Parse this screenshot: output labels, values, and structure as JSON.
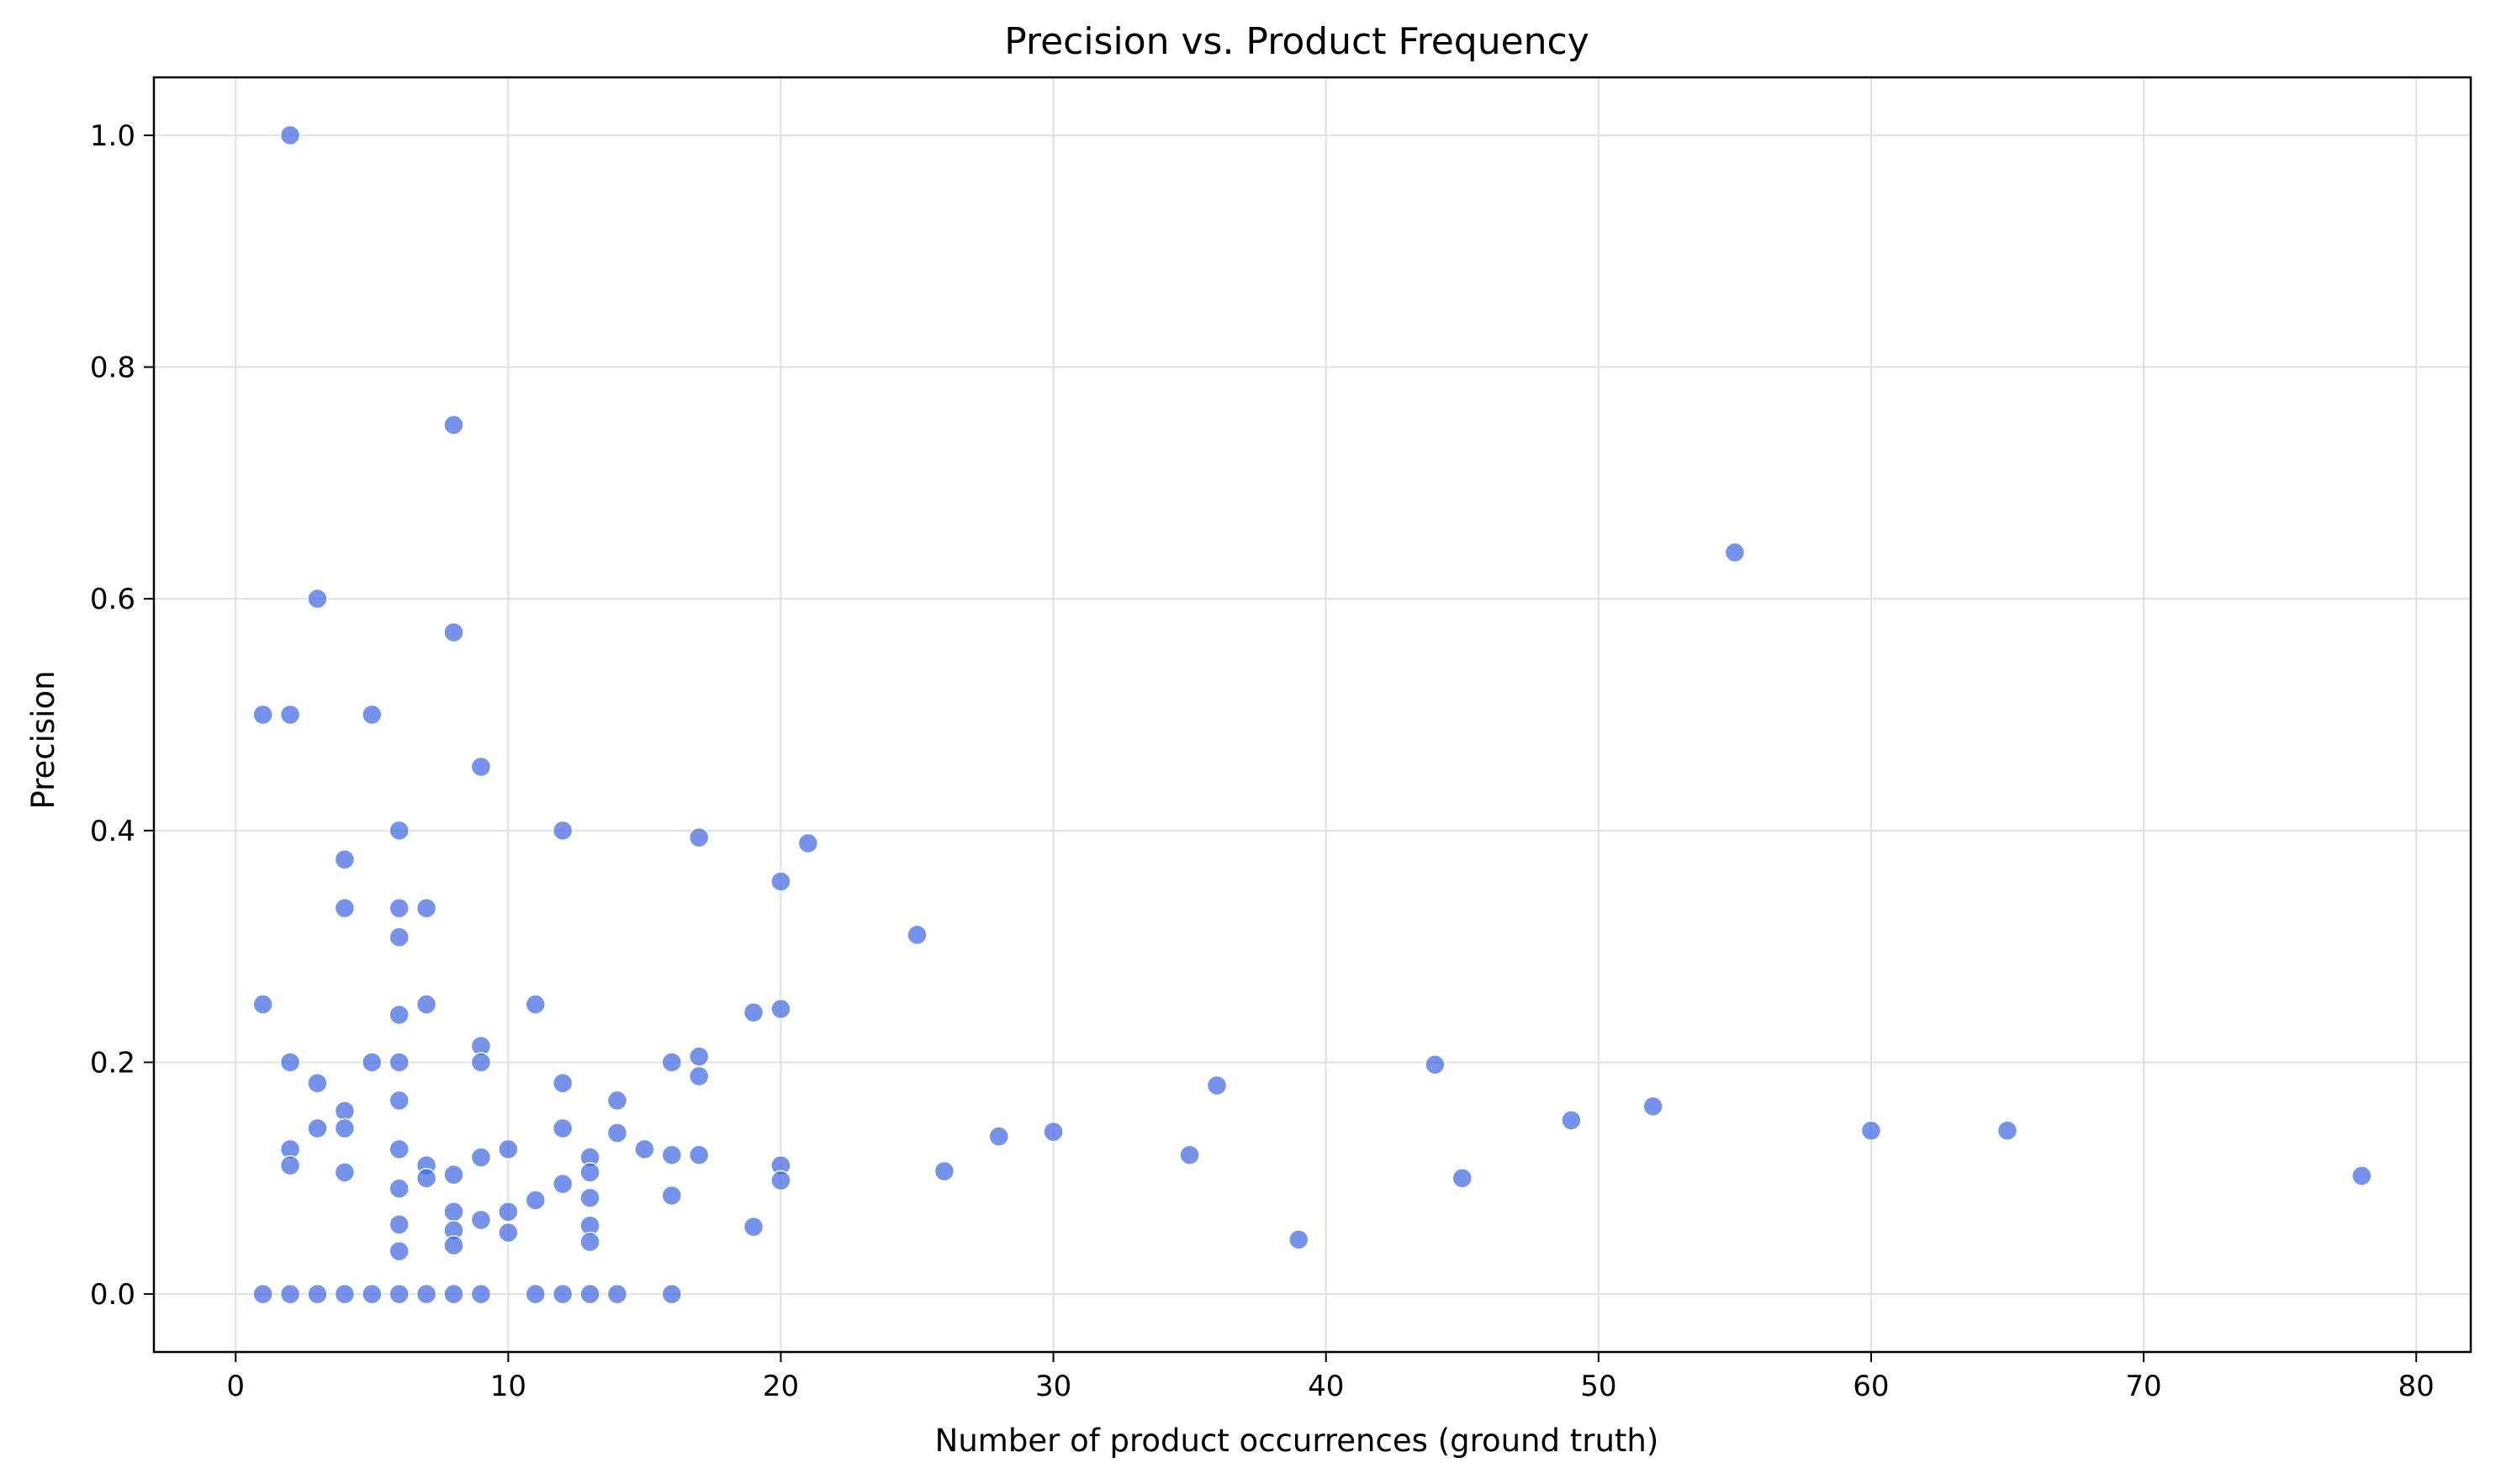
{
  "chart_data": {
    "type": "scatter",
    "title": "Precision vs. Product Frequency",
    "xlabel": "Number of product occurrences (ground truth)",
    "ylabel": "Precision",
    "xlim": [
      -3,
      82
    ],
    "ylim": [
      -0.05,
      1.05
    ],
    "xticks": [
      0,
      10,
      20,
      30,
      40,
      50,
      60,
      70,
      80
    ],
    "yticks": [
      0.0,
      0.2,
      0.4,
      0.6,
      0.8,
      1.0
    ],
    "xtick_labels": [
      "0",
      "10",
      "20",
      "30",
      "40",
      "50",
      "60",
      "70",
      "80"
    ],
    "ytick_labels": [
      "0.0",
      "0.2",
      "0.4",
      "0.6",
      "0.8",
      "1.0"
    ],
    "grid": true,
    "point_color": "#4169e1",
    "points": [
      [
        2,
        1.0
      ],
      [
        8,
        0.75
      ],
      [
        55,
        0.64
      ],
      [
        3,
        0.6
      ],
      [
        8,
        0.571
      ],
      [
        1,
        0.5
      ],
      [
        2,
        0.5
      ],
      [
        5,
        0.5
      ],
      [
        9,
        0.455
      ],
      [
        6,
        0.4
      ],
      [
        12,
        0.4
      ],
      [
        17,
        0.394
      ],
      [
        21,
        0.389
      ],
      [
        4,
        0.375
      ],
      [
        20,
        0.356
      ],
      [
        4,
        0.333
      ],
      [
        6,
        0.333
      ],
      [
        7,
        0.333
      ],
      [
        25,
        0.31
      ],
      [
        6,
        0.308
      ],
      [
        1,
        0.25
      ],
      [
        7,
        0.25
      ],
      [
        11,
        0.25
      ],
      [
        19,
        0.243
      ],
      [
        20,
        0.246
      ],
      [
        6,
        0.241
      ],
      [
        9,
        0.214
      ],
      [
        2,
        0.2
      ],
      [
        5,
        0.2
      ],
      [
        6,
        0.2
      ],
      [
        9,
        0.2
      ],
      [
        16,
        0.2
      ],
      [
        17,
        0.205
      ],
      [
        44,
        0.198
      ],
      [
        17,
        0.188
      ],
      [
        3,
        0.182
      ],
      [
        12,
        0.182
      ],
      [
        36,
        0.18
      ],
      [
        6,
        0.167
      ],
      [
        14,
        0.167
      ],
      [
        52,
        0.162
      ],
      [
        4,
        0.158
      ],
      [
        49,
        0.15
      ],
      [
        3,
        0.143
      ],
      [
        4,
        0.143
      ],
      [
        12,
        0.143
      ],
      [
        60,
        0.141
      ],
      [
        65,
        0.141
      ],
      [
        30,
        0.14
      ],
      [
        14,
        0.139
      ],
      [
        28,
        0.136
      ],
      [
        2,
        0.125
      ],
      [
        6,
        0.125
      ],
      [
        10,
        0.125
      ],
      [
        15,
        0.125
      ],
      [
        35,
        0.12
      ],
      [
        16,
        0.12
      ],
      [
        17,
        0.12
      ],
      [
        13,
        0.118
      ],
      [
        9,
        0.118
      ],
      [
        2,
        0.111
      ],
      [
        7,
        0.111
      ],
      [
        20,
        0.111
      ],
      [
        26,
        0.106
      ],
      [
        4,
        0.105
      ],
      [
        13,
        0.105
      ],
      [
        8,
        0.103
      ],
      [
        78,
        0.102
      ],
      [
        45,
        0.1
      ],
      [
        7,
        0.1
      ],
      [
        20,
        0.098
      ],
      [
        12,
        0.095
      ],
      [
        6,
        0.091
      ],
      [
        16,
        0.085
      ],
      [
        13,
        0.083
      ],
      [
        11,
        0.081
      ],
      [
        8,
        0.071
      ],
      [
        10,
        0.071
      ],
      [
        9,
        0.064
      ],
      [
        6,
        0.06
      ],
      [
        13,
        0.059
      ],
      [
        19,
        0.058
      ],
      [
        8,
        0.055
      ],
      [
        10,
        0.053
      ],
      [
        39,
        0.047
      ],
      [
        13,
        0.045
      ],
      [
        8,
        0.042
      ],
      [
        6,
        0.037
      ],
      [
        1,
        0.0
      ],
      [
        2,
        0.0
      ],
      [
        3,
        0.0
      ],
      [
        4,
        0.0
      ],
      [
        5,
        0.0
      ],
      [
        6,
        0.0
      ],
      [
        7,
        0.0
      ],
      [
        8,
        0.0
      ],
      [
        9,
        0.0
      ],
      [
        11,
        0.0
      ],
      [
        12,
        0.0
      ],
      [
        13,
        0.0
      ],
      [
        14,
        0.0
      ],
      [
        16,
        0.0
      ]
    ]
  }
}
